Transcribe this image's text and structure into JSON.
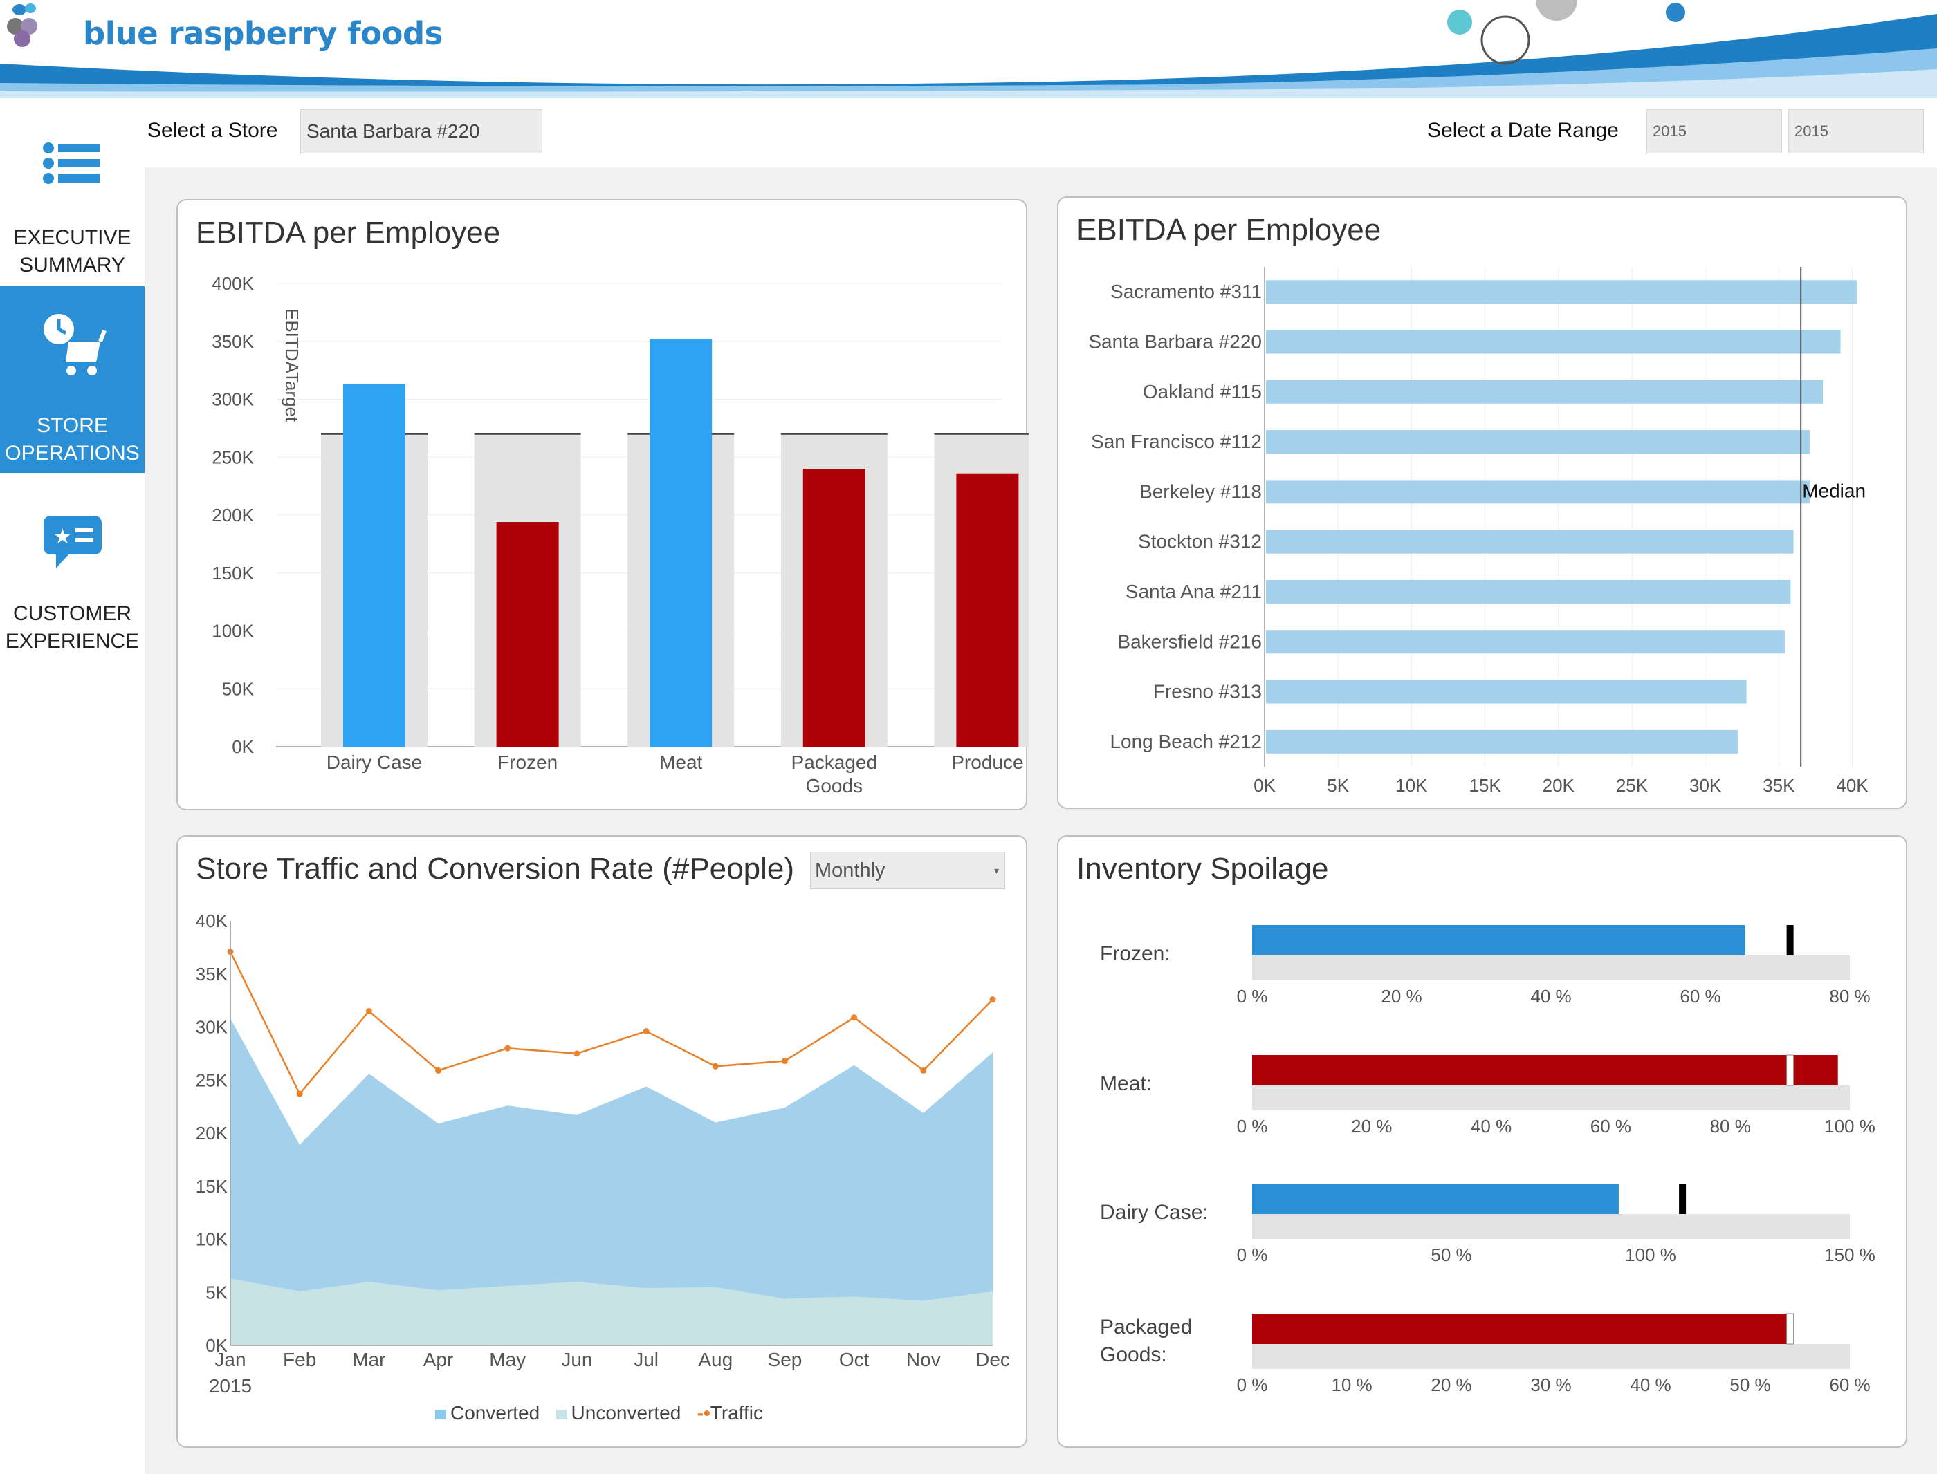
{
  "brand": {
    "name": "blue raspberry foods"
  },
  "colors": {
    "accent": "#2a8fd4",
    "positive": "#2ea3f2",
    "negative": "#ad0007",
    "light_blue": "#a3d1ec",
    "unconverted": "#c8e3e5",
    "traffic": "#e8822a",
    "target_gray": "#e3e3e3"
  },
  "sidebar": {
    "items": [
      {
        "label1": "EXECUTIVE",
        "label2": "SUMMARY",
        "icon": "list-icon",
        "active": false
      },
      {
        "label1": "STORE",
        "label2": "OPERATIONS",
        "icon": "cart-clock-icon",
        "active": true
      },
      {
        "label1": "CUSTOMER",
        "label2": "EXPERIENCE",
        "icon": "chat-bubble-icon",
        "active": false
      }
    ]
  },
  "filters": {
    "store_label": "Select a Store",
    "store_value": "Santa Barbara #220",
    "date_label": "Select a Date Range",
    "date_from": "2015",
    "date_to": "2015"
  },
  "panel1": {
    "title": "EBITDA per Employee",
    "target_label": "EBITDATarget"
  },
  "panel2": {
    "title": "EBITDA per Employee",
    "median_label": "Median"
  },
  "panel3": {
    "title": "Store Traffic and Conversion Rate (#People)",
    "dropdown_value": "Monthly",
    "year_label": "2015",
    "legend": [
      "Converted",
      "Unconverted",
      "Traffic"
    ]
  },
  "panel4": {
    "title": "Inventory Spoilage",
    "labels": [
      "Frozen:",
      "Meat:",
      "Dairy Case:",
      "Packaged",
      "Goods:"
    ]
  },
  "chart_data": [
    {
      "type": "bar",
      "title": "EBITDA per Employee",
      "categories": [
        "Dairy Case",
        "Frozen",
        "Meat",
        "Packaged Goods",
        "Produce"
      ],
      "category_lines": [
        [
          "Dairy Case"
        ],
        [
          "Frozen"
        ],
        [
          "Meat"
        ],
        [
          "Packaged",
          "Goods"
        ],
        [
          "Produce"
        ]
      ],
      "values": [
        313000,
        194000,
        352000,
        240000,
        236000
      ],
      "target": 270000,
      "ylim": [
        0,
        400000
      ],
      "yticks": [
        0,
        50000,
        100000,
        150000,
        200000,
        250000,
        300000,
        350000,
        400000
      ],
      "ytick_labels": [
        "0K",
        "50K",
        "100K",
        "150K",
        "200K",
        "250K",
        "300K",
        "350K",
        "400K"
      ],
      "grid": true
    },
    {
      "type": "bar",
      "orientation": "horizontal",
      "title": "EBITDA per Employee",
      "categories": [
        "Sacramento #311",
        "Santa Barbara #220",
        "Oakland #115",
        "San Francisco #112",
        "Berkeley #118",
        "Stockton #312",
        "Santa Ana #211",
        "Bakersfield #216",
        "Fresno #313",
        "Long Beach #212"
      ],
      "values": [
        40300,
        39200,
        38000,
        37100,
        37100,
        36000,
        35800,
        35400,
        32800,
        32200
      ],
      "median": 36500,
      "xlim": [
        0,
        42000
      ],
      "xticks": [
        0,
        5000,
        10000,
        15000,
        20000,
        25000,
        30000,
        35000,
        40000
      ],
      "xtick_labels": [
        "0K",
        "5K",
        "10K",
        "15K",
        "20K",
        "25K",
        "30K",
        "35K",
        "40K"
      ],
      "grid": true
    },
    {
      "type": "area",
      "title": "Store Traffic and Conversion Rate (#People)",
      "categories": [
        "Jan",
        "Feb",
        "Mar",
        "Apr",
        "May",
        "Jun",
        "Jul",
        "Aug",
        "Sep",
        "Oct",
        "Nov",
        "Dec"
      ],
      "series": [
        {
          "name": "Unconverted",
          "values": [
            6300,
            5100,
            6000,
            5200,
            5600,
            6000,
            5400,
            5500,
            4400,
            4600,
            4200,
            5100
          ]
        },
        {
          "name": "Converted",
          "values": [
            30800,
            18900,
            25600,
            20900,
            22600,
            21700,
            24400,
            21000,
            22400,
            26400,
            21900,
            27600
          ]
        },
        {
          "name": "Traffic",
          "values": [
            37100,
            23700,
            31500,
            25900,
            28000,
            27500,
            29600,
            26300,
            26800,
            30900,
            25900,
            32600
          ]
        }
      ],
      "ylim": [
        0,
        40000
      ],
      "yticks": [
        0,
        5000,
        10000,
        15000,
        20000,
        25000,
        30000,
        35000,
        40000
      ],
      "ytick_labels": [
        "0K",
        "5K",
        "10K",
        "15K",
        "20K",
        "25K",
        "30K",
        "35K",
        "40K"
      ]
    },
    {
      "type": "bar",
      "subtype": "bullet",
      "title": "Inventory Spoilage",
      "items": [
        {
          "name": "Frozen",
          "value": 66,
          "target": 72,
          "max": 80,
          "ticks": [
            0,
            20,
            40,
            60,
            80
          ],
          "tick_labels": [
            "0 %",
            "20 %",
            "40 %",
            "60 %",
            "80 %"
          ],
          "color": "#2a8fd4"
        },
        {
          "name": "Meat",
          "value": 98,
          "target": 90,
          "max": 100,
          "ticks": [
            0,
            20,
            40,
            60,
            80,
            100
          ],
          "tick_labels": [
            "0 %",
            "20 %",
            "40 %",
            "60 %",
            "80 %",
            "100 %"
          ],
          "color": "#ad0007"
        },
        {
          "name": "Dairy Case",
          "value": 92,
          "target": 108,
          "max": 150,
          "ticks": [
            0,
            50,
            100,
            150
          ],
          "tick_labels": [
            "0 %",
            "50 %",
            "100 %",
            "150 %"
          ],
          "color": "#2a8fd4"
        },
        {
          "name": "Packaged Goods",
          "value": 54,
          "target": 54,
          "max": 60,
          "ticks": [
            0,
            10,
            20,
            30,
            40,
            50,
            60
          ],
          "tick_labels": [
            "0 %",
            "10 %",
            "20 %",
            "30 %",
            "40 %",
            "50 %",
            "60 %"
          ],
          "color": "#ad0007"
        }
      ]
    }
  ]
}
